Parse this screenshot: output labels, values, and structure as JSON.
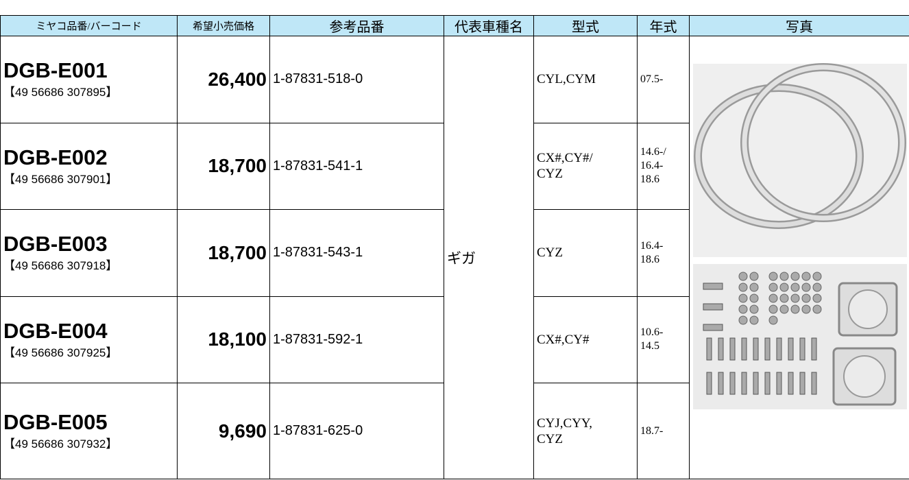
{
  "table": {
    "header": [
      "ミヤコ品番/バーコード",
      "希望小売価格",
      "参考品番",
      "代表車種名",
      "型式",
      "年式",
      "写真"
    ],
    "vehicle": "ギガ",
    "rows": [
      {
        "part": "DGB-E001",
        "barcode": "【49 56686 307895】",
        "price": "26,400",
        "ref": "1-87831-518-0",
        "model": [
          "CYL,CYM"
        ],
        "year": [
          "07.5-"
        ]
      },
      {
        "part": "DGB-E002",
        "barcode": "【49 56686 307901】",
        "price": "18,700",
        "ref": "1-87831-541-1",
        "model": [
          "CX#,CY#/",
          "CYZ"
        ],
        "year": [
          "14.6-/",
          "16.4-",
          "18.6"
        ]
      },
      {
        "part": "DGB-E003",
        "barcode": "【49 56686 307918】",
        "price": "18,700",
        "ref": "1-87831-543-1",
        "model": [
          "CYZ"
        ],
        "year": [
          "16.4-",
          "18.6"
        ]
      },
      {
        "part": "DGB-E004",
        "barcode": "【49 56686 307925】",
        "price": "18,100",
        "ref": "1-87831-592-1",
        "model": [
          "CX#,CY#"
        ],
        "year": [
          "10.6-",
          "14.5"
        ]
      },
      {
        "part": "DGB-E005",
        "barcode": "【49 56686 307932】",
        "price": "9,690",
        "ref": "1-87831-625-0",
        "model": [
          "CYJ,CYY,",
          "CYZ"
        ],
        "year": [
          "18.7-"
        ]
      }
    ]
  }
}
